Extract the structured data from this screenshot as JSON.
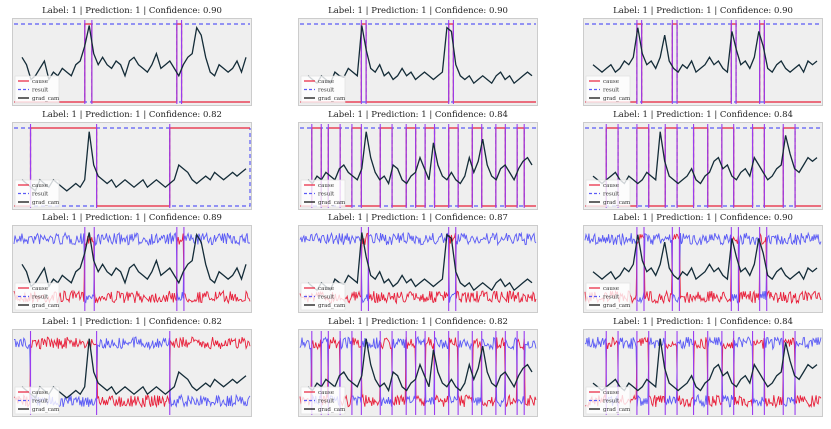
{
  "colors": {
    "cause": "#e8213b",
    "result": "#5b5bf5",
    "grad_cam": "#142c38",
    "boundary": "#9a3cf0",
    "background": "#efefef"
  },
  "legend": [
    "cause",
    "result",
    "grad_cam"
  ],
  "chart_data": [
    {
      "type": "line",
      "title": "Label: 1 | Prediction: 1 | Confidence: 0.90",
      "mode": "step",
      "cause_high": [
        [
          0.3,
          0.33
        ],
        [
          0.69,
          0.71
        ]
      ],
      "gradcam": [
        0.55,
        0.45,
        0.25,
        0.3,
        0.4,
        0.5,
        0.25,
        0.35,
        0.3,
        0.4,
        0.35,
        0.3,
        0.45,
        0.5,
        0.7,
        0.98,
        0.6,
        0.45,
        0.55,
        0.45,
        0.4,
        0.5,
        0.45,
        0.3,
        0.5,
        0.55,
        0.45,
        0.4,
        0.35,
        0.45,
        0.6,
        0.4,
        0.45,
        0.5,
        0.4,
        0.3,
        0.45,
        0.55,
        0.6,
        0.95,
        0.85,
        0.55,
        0.35,
        0.3,
        0.45,
        0.4,
        0.35,
        0.4,
        0.5,
        0.35,
        0.55
      ]
    },
    {
      "type": "line",
      "title": "Label: 1 | Prediction: 1 | Confidence: 0.90",
      "mode": "step",
      "cause_high": [
        [
          0.26,
          0.28
        ],
        [
          0.63,
          0.65
        ]
      ],
      "gradcam": [
        0.3,
        0.25,
        0.2,
        0.3,
        0.25,
        0.2,
        0.35,
        0.3,
        0.28,
        0.4,
        0.35,
        0.3,
        0.98,
        0.65,
        0.4,
        0.35,
        0.45,
        0.3,
        0.35,
        0.25,
        0.3,
        0.4,
        0.3,
        0.35,
        0.25,
        0.3,
        0.35,
        0.3,
        0.25,
        0.3,
        0.35,
        0.95,
        0.9,
        0.45,
        0.3,
        0.25,
        0.3,
        0.2,
        0.25,
        0.3,
        0.25,
        0.2,
        0.3,
        0.35,
        0.25,
        0.3,
        0.2,
        0.25,
        0.3,
        0.35,
        0.3
      ]
    },
    {
      "type": "line",
      "title": "Label: 1 | Prediction: 1 | Confidence: 0.90",
      "mode": "step",
      "cause_high": [
        [
          0.22,
          0.24
        ],
        [
          0.37,
          0.39
        ],
        [
          0.62,
          0.64
        ],
        [
          0.74,
          0.76
        ]
      ],
      "gradcam": [
        0.45,
        0.4,
        0.35,
        0.4,
        0.45,
        0.35,
        0.4,
        0.5,
        0.45,
        0.55,
        0.95,
        0.6,
        0.45,
        0.5,
        0.4,
        0.55,
        0.85,
        0.5,
        0.4,
        0.35,
        0.45,
        0.4,
        0.5,
        0.35,
        0.4,
        0.45,
        0.55,
        0.45,
        0.5,
        0.4,
        0.35,
        0.9,
        0.65,
        0.45,
        0.5,
        0.4,
        0.55,
        0.9,
        0.7,
        0.4,
        0.35,
        0.45,
        0.5,
        0.4,
        0.35,
        0.4,
        0.45,
        0.35,
        0.5,
        0.45,
        0.5
      ]
    },
    {
      "type": "line",
      "title": "Label: 1 | Prediction: 1 | Confidence: 0.82",
      "mode": "step",
      "cause_high": [
        [
          0.07,
          0.35
        ],
        [
          0.66,
          1.0
        ]
      ],
      "gradcam": [
        0.3,
        0.25,
        0.2,
        0.15,
        0.3,
        0.25,
        0.2,
        0.3,
        0.25,
        0.2,
        0.15,
        0.2,
        0.25,
        0.2,
        0.3,
        0.95,
        0.5,
        0.35,
        0.3,
        0.25,
        0.3,
        0.2,
        0.25,
        0.3,
        0.25,
        0.2,
        0.25,
        0.3,
        0.2,
        0.25,
        0.3,
        0.25,
        0.2,
        0.25,
        0.3,
        0.5,
        0.45,
        0.4,
        0.3,
        0.25,
        0.3,
        0.35,
        0.3,
        0.4,
        0.35,
        0.3,
        0.35,
        0.4,
        0.35,
        0.4,
        0.45
      ]
    },
    {
      "type": "line",
      "title": "Label: 1 | Prediction: 1 | Confidence: 0.84",
      "mode": "step",
      "cause_high": [
        [
          0.05,
          0.09
        ],
        [
          0.12,
          0.17
        ],
        [
          0.22,
          0.26
        ],
        [
          0.34,
          0.39
        ],
        [
          0.45,
          0.49
        ],
        [
          0.53,
          0.57
        ],
        [
          0.63,
          0.67
        ],
        [
          0.73,
          0.77
        ],
        [
          0.83,
          0.87
        ],
        [
          0.92,
          0.95
        ]
      ],
      "gradcam": [
        0.3,
        0.25,
        0.35,
        0.3,
        0.4,
        0.35,
        0.3,
        0.45,
        0.5,
        0.4,
        0.35,
        0.3,
        0.45,
        0.95,
        0.6,
        0.4,
        0.3,
        0.35,
        0.25,
        0.5,
        0.45,
        0.3,
        0.25,
        0.35,
        0.4,
        0.6,
        0.45,
        0.3,
        0.8,
        0.5,
        0.35,
        0.3,
        0.4,
        0.3,
        0.25,
        0.35,
        0.6,
        0.4,
        0.55,
        0.85,
        0.5,
        0.35,
        0.3,
        0.45,
        0.5,
        0.4,
        0.3,
        0.45,
        0.55,
        0.6,
        0.5
      ]
    },
    {
      "type": "line",
      "title": "Label: 1 | Prediction: 1 | Confidence: 0.84",
      "mode": "step",
      "cause_high": [
        [
          0.09,
          0.14
        ],
        [
          0.22,
          0.27
        ],
        [
          0.34,
          0.39
        ],
        [
          0.46,
          0.52
        ],
        [
          0.58,
          0.63
        ],
        [
          0.71,
          0.76
        ],
        [
          0.84,
          0.89
        ]
      ],
      "gradcam": [
        0.35,
        0.3,
        0.25,
        0.3,
        0.35,
        0.4,
        0.3,
        0.25,
        0.35,
        0.3,
        0.25,
        0.3,
        0.4,
        0.35,
        0.3,
        0.95,
        0.55,
        0.35,
        0.3,
        0.25,
        0.3,
        0.35,
        0.45,
        0.3,
        0.25,
        0.35,
        0.4,
        0.55,
        0.6,
        0.45,
        0.5,
        0.35,
        0.3,
        0.4,
        0.45,
        0.35,
        0.6,
        0.5,
        0.4,
        0.3,
        0.35,
        0.45,
        0.5,
        0.9,
        0.65,
        0.45,
        0.4,
        0.5,
        0.6,
        0.55,
        0.6
      ]
    },
    {
      "type": "line",
      "title": "Label: 1 | Prediction: 1 | Confidence: 0.89",
      "mode": "noise",
      "cause_high": [
        [
          0.3,
          0.34
        ],
        [
          0.69,
          0.72
        ]
      ],
      "gradcam": [
        0.55,
        0.45,
        0.25,
        0.3,
        0.4,
        0.5,
        0.25,
        0.35,
        0.3,
        0.4,
        0.35,
        0.3,
        0.45,
        0.5,
        0.7,
        0.98,
        0.6,
        0.45,
        0.55,
        0.45,
        0.4,
        0.5,
        0.45,
        0.3,
        0.5,
        0.55,
        0.45,
        0.4,
        0.35,
        0.45,
        0.6,
        0.4,
        0.45,
        0.5,
        0.4,
        0.3,
        0.45,
        0.55,
        0.6,
        0.95,
        0.85,
        0.55,
        0.35,
        0.3,
        0.45,
        0.4,
        0.35,
        0.4,
        0.5,
        0.35,
        0.55
      ]
    },
    {
      "type": "line",
      "title": "Label: 1 | Prediction: 1 | Confidence: 0.87",
      "mode": "noise",
      "cause_high": [
        [
          0.26,
          0.29
        ],
        [
          0.63,
          0.66
        ]
      ],
      "gradcam": [
        0.3,
        0.25,
        0.2,
        0.3,
        0.25,
        0.2,
        0.35,
        0.3,
        0.28,
        0.4,
        0.35,
        0.3,
        0.98,
        0.65,
        0.4,
        0.35,
        0.45,
        0.3,
        0.35,
        0.25,
        0.3,
        0.4,
        0.3,
        0.35,
        0.25,
        0.3,
        0.35,
        0.3,
        0.25,
        0.3,
        0.35,
        0.95,
        0.9,
        0.45,
        0.3,
        0.25,
        0.3,
        0.2,
        0.25,
        0.3,
        0.25,
        0.2,
        0.3,
        0.35,
        0.25,
        0.3,
        0.2,
        0.25,
        0.3,
        0.35,
        0.3
      ]
    },
    {
      "type": "line",
      "title": "Label: 1 | Prediction: 1 | Confidence: 0.90",
      "mode": "noise",
      "cause_high": [
        [
          0.22,
          0.25
        ],
        [
          0.37,
          0.4
        ],
        [
          0.62,
          0.65
        ],
        [
          0.74,
          0.77
        ]
      ],
      "gradcam": [
        0.45,
        0.4,
        0.35,
        0.4,
        0.45,
        0.35,
        0.4,
        0.5,
        0.45,
        0.55,
        0.95,
        0.6,
        0.45,
        0.5,
        0.4,
        0.55,
        0.85,
        0.5,
        0.4,
        0.35,
        0.45,
        0.4,
        0.5,
        0.35,
        0.4,
        0.45,
        0.55,
        0.45,
        0.5,
        0.4,
        0.35,
        0.9,
        0.65,
        0.45,
        0.5,
        0.4,
        0.55,
        0.9,
        0.7,
        0.4,
        0.35,
        0.45,
        0.5,
        0.4,
        0.35,
        0.4,
        0.45,
        0.35,
        0.5,
        0.45,
        0.5
      ]
    },
    {
      "type": "line",
      "title": "Label: 1 | Prediction: 1 | Confidence: 0.82",
      "mode": "noise",
      "cause_high": [
        [
          0.07,
          0.35
        ],
        [
          0.66,
          1.0
        ]
      ],
      "gradcam": [
        0.3,
        0.25,
        0.2,
        0.15,
        0.3,
        0.25,
        0.2,
        0.3,
        0.25,
        0.2,
        0.15,
        0.2,
        0.25,
        0.2,
        0.3,
        0.95,
        0.5,
        0.35,
        0.3,
        0.25,
        0.3,
        0.2,
        0.25,
        0.3,
        0.25,
        0.2,
        0.25,
        0.3,
        0.2,
        0.25,
        0.3,
        0.25,
        0.2,
        0.25,
        0.3,
        0.5,
        0.45,
        0.4,
        0.3,
        0.25,
        0.3,
        0.35,
        0.3,
        0.4,
        0.35,
        0.3,
        0.35,
        0.4,
        0.35,
        0.4,
        0.45
      ]
    },
    {
      "type": "line",
      "title": "Label: 1 | Prediction: 1 | Confidence: 0.82",
      "mode": "noise",
      "cause_high": [
        [
          0.05,
          0.09
        ],
        [
          0.12,
          0.17
        ],
        [
          0.22,
          0.26
        ],
        [
          0.34,
          0.39
        ],
        [
          0.45,
          0.49
        ],
        [
          0.53,
          0.57
        ],
        [
          0.63,
          0.67
        ],
        [
          0.73,
          0.77
        ],
        [
          0.83,
          0.87
        ],
        [
          0.92,
          0.95
        ]
      ],
      "gradcam": [
        0.3,
        0.25,
        0.35,
        0.3,
        0.4,
        0.35,
        0.3,
        0.45,
        0.5,
        0.4,
        0.35,
        0.3,
        0.45,
        0.95,
        0.6,
        0.4,
        0.3,
        0.35,
        0.25,
        0.5,
        0.45,
        0.3,
        0.25,
        0.35,
        0.4,
        0.6,
        0.45,
        0.3,
        0.8,
        0.5,
        0.35,
        0.3,
        0.4,
        0.3,
        0.25,
        0.35,
        0.6,
        0.4,
        0.55,
        0.85,
        0.5,
        0.35,
        0.3,
        0.45,
        0.5,
        0.4,
        0.3,
        0.45,
        0.55,
        0.6,
        0.5
      ]
    },
    {
      "type": "line",
      "title": "Label: 1 | Prediction: 1 | Confidence: 0.84",
      "mode": "noise",
      "cause_high": [
        [
          0.09,
          0.14
        ],
        [
          0.22,
          0.27
        ],
        [
          0.34,
          0.39
        ],
        [
          0.46,
          0.52
        ],
        [
          0.58,
          0.63
        ],
        [
          0.71,
          0.76
        ],
        [
          0.84,
          0.89
        ]
      ],
      "gradcam": [
        0.35,
        0.3,
        0.25,
        0.3,
        0.35,
        0.4,
        0.3,
        0.25,
        0.35,
        0.3,
        0.25,
        0.3,
        0.4,
        0.35,
        0.3,
        0.95,
        0.55,
        0.35,
        0.3,
        0.25,
        0.3,
        0.35,
        0.45,
        0.3,
        0.25,
        0.35,
        0.4,
        0.55,
        0.6,
        0.45,
        0.5,
        0.35,
        0.3,
        0.4,
        0.45,
        0.35,
        0.6,
        0.5,
        0.4,
        0.3,
        0.35,
        0.45,
        0.5,
        0.9,
        0.65,
        0.45,
        0.4,
        0.5,
        0.6,
        0.55,
        0.6
      ]
    }
  ]
}
